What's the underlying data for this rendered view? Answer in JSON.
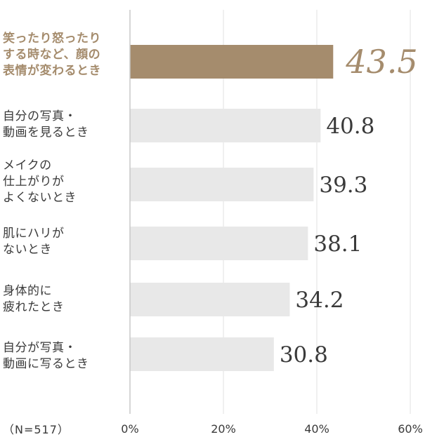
{
  "chart_data": {
    "type": "bar",
    "orientation": "horizontal",
    "categories": [
      "笑ったり怒ったり\nする時など、顔の\n表情が変わるとき",
      "自分の写真・\n動画を見るとき",
      "メイクの\n仕上がりが\nよくないとき",
      "肌にハリが\nないとき",
      "身体的に\n疲れたとき",
      "自分が写真・\n動画に写るとき"
    ],
    "values": [
      43.5,
      40.8,
      39.3,
      38.1,
      34.2,
      30.8
    ],
    "value_labels": [
      "43.5",
      "40.8",
      "39.3",
      "38.1",
      "34.2",
      "30.8"
    ],
    "highlight_index": 0,
    "xlim": [
      0,
      60
    ],
    "xticks": [
      "0%",
      "20%",
      "40%",
      "60%"
    ],
    "grid": true,
    "note": "（N=517）",
    "colors": {
      "highlight": "#a58c6d",
      "bar": "#e8e8e8",
      "grid": "#e2e2e2",
      "axis": "#c8c8c8",
      "text": "#3a3a3a"
    }
  }
}
